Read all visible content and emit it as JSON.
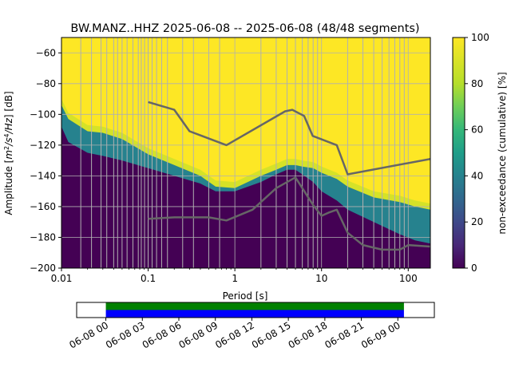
{
  "chart_data": [
    {
      "type": "heatmap",
      "title": "BW.MANZ..HHZ   2025-06-08 -- 2025-06-08  (48/48 segments)",
      "xlabel": "Period [s]",
      "ylabel": "Amplitude [m²/s⁴/Hz] [dB]",
      "ylabel_parts": {
        "prefix": "Amplitude [",
        "m": "m",
        "exp2": "2",
        "slash_s": "/s",
        "exp4": "4",
        "slash_hz": "/Hz",
        "suffix": "] [dB]"
      },
      "x_scale": "log",
      "xlim": [
        0.01,
        180
      ],
      "ylim": [
        -200,
        -50
      ],
      "x_ticks": [
        0.01,
        0.1,
        1,
        10,
        100
      ],
      "x_tick_labels": [
        "0.01",
        "0.1",
        "1",
        "10",
        "100"
      ],
      "y_ticks": [
        -200,
        -180,
        -160,
        -140,
        -120,
        -100,
        -80,
        -60
      ],
      "y_tick_labels": [
        "−200",
        "−180",
        "−160",
        "−140",
        "−120",
        "−100",
        "−80",
        "−60"
      ],
      "grid": true,
      "colorbar": {
        "label": "non-exceedance (cumulative) [%]",
        "range": [
          0,
          100
        ],
        "ticks": [
          0,
          20,
          40,
          60,
          80,
          100
        ],
        "tick_labels": [
          "0",
          "20",
          "40",
          "60",
          "80",
          "100"
        ],
        "colormap": "viridis"
      },
      "psd_transition": {
        "period": [
          0.01,
          0.012,
          0.02,
          0.03,
          0.05,
          0.1,
          0.2,
          0.4,
          0.6,
          1,
          2,
          3,
          4,
          5,
          6,
          8,
          10,
          15,
          20,
          40,
          80,
          120,
          180
        ],
        "lower_db": [
          -108,
          -118,
          -125,
          -127,
          -130,
          -135,
          -140,
          -145,
          -150,
          -150,
          -144,
          -139,
          -136,
          -136,
          -139,
          -144,
          -150,
          -156,
          -162,
          -170,
          -178,
          -182,
          -184
        ],
        "upper_db": [
          -94,
          -103,
          -111,
          -112,
          -116,
          -126,
          -133,
          -140,
          -147,
          -148,
          -140,
          -136,
          -133,
          -133,
          -134,
          -135,
          -138,
          -142,
          -147,
          -154,
          -157,
          -160,
          -162
        ],
        "band_level_pct": 40
      },
      "series": [
        {
          "name": "",
          "color": "#666666",
          "x": [
            0.1,
            0.2,
            0.3,
            0.8,
            3.8,
            4.6,
            6.3,
            7.9,
            15,
            20,
            180
          ],
          "y": [
            -92,
            -97,
            -111,
            -120,
            -98,
            -97,
            -101,
            -114,
            -120,
            -139,
            -129
          ]
        },
        {
          "name": "",
          "color": "#666666",
          "x": [
            0.1,
            0.2,
            0.5,
            0.8,
            1.6,
            3.0,
            5.0,
            8.0,
            10,
            12,
            15,
            20,
            30,
            50,
            80,
            100,
            180
          ],
          "y": [
            -168,
            -167,
            -167,
            -169,
            -162,
            -148,
            -141,
            -159,
            -166,
            -164,
            -162,
            -177,
            -185,
            -188,
            -188,
            -185,
            -186
          ]
        }
      ],
      "vertical_period_lines": [
        0.0167,
        0.0222,
        0.0286,
        0.0333,
        0.04,
        0.0444,
        0.05,
        0.0571,
        0.0667,
        0.0769,
        0.0833,
        0.0909,
        0.1,
        0.111,
        0.125,
        0.143,
        0.167,
        0.25,
        0.333,
        0.5,
        0.667,
        2,
        3,
        4,
        5,
        6,
        7,
        8,
        9,
        20,
        30,
        40,
        50,
        60,
        70,
        80,
        90
      ]
    },
    {
      "type": "timeline",
      "tick_labels": [
        "06-08 00",
        "06-08 03",
        "06-08 06",
        "06-08 09",
        "06-08 12",
        "06-08 15",
        "06-08 18",
        "06-08 21",
        "06-09 00"
      ],
      "tick_hours": [
        0,
        3,
        6,
        9,
        12,
        15,
        18,
        21,
        24
      ],
      "xlim_hours": [
        -2.4,
        27.0
      ],
      "bars": [
        {
          "color": "#008000",
          "start_hour": 0,
          "end_hour": 24.5
        },
        {
          "color": "#0000ff",
          "start_hour": 0,
          "end_hour": 24.5
        }
      ]
    }
  ]
}
